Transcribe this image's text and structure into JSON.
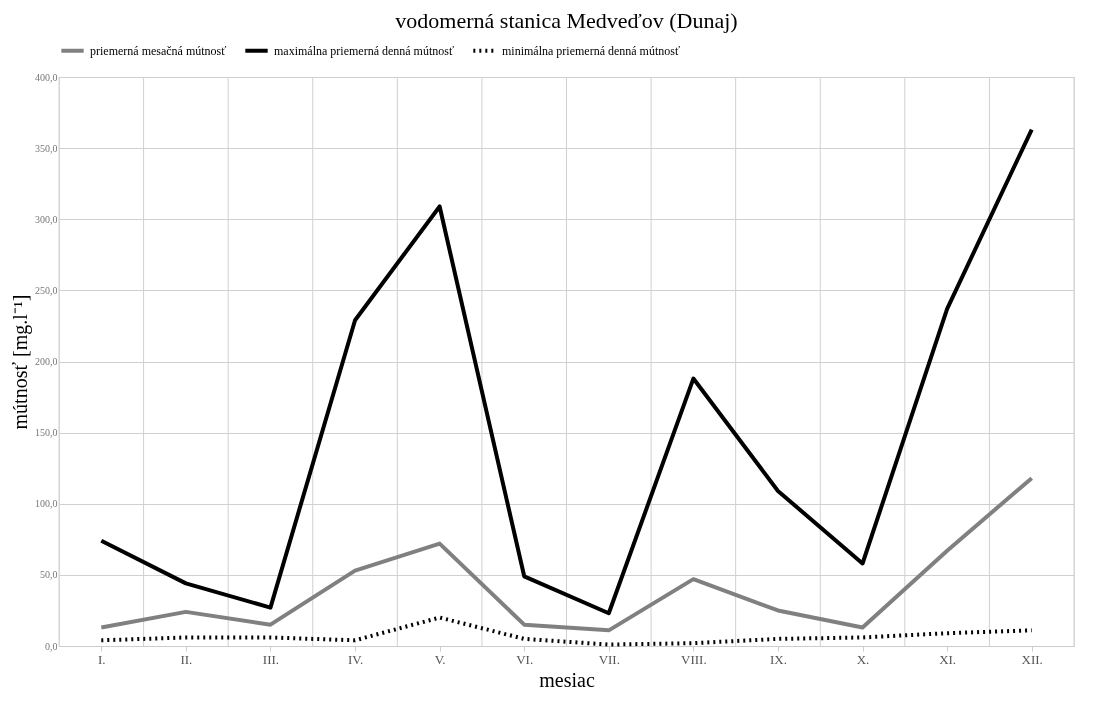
{
  "chart_data": {
    "type": "line",
    "title": "vodomerná stanica Medveďov (Dunaj)",
    "xlabel": "mesiac",
    "ylabel": "mútnosť [mg.l⁻¹]",
    "categories": [
      "I.",
      "II.",
      "III.",
      "IV.",
      "V.",
      "VI.",
      "VII.",
      "VIII.",
      "IX.",
      "X.",
      "XI.",
      "XII."
    ],
    "series": [
      {
        "name": "priemerná mesačná mútnosť",
        "color": "#808080",
        "line_style": "solid",
        "values": [
          13,
          24,
          15,
          53,
          72,
          15,
          11,
          47,
          25,
          13,
          67,
          118
        ]
      },
      {
        "name": "maximálna priemerná denná mútnosť",
        "color": "#000000",
        "line_style": "solid",
        "values": [
          74,
          44,
          27,
          229,
          309,
          49,
          23,
          188,
          109,
          58,
          237,
          363
        ]
      },
      {
        "name": "minimálna priemerná denná mútnosť",
        "color": "#000000",
        "line_style": "dotted",
        "values": [
          4,
          6,
          6,
          4,
          20,
          5,
          1,
          2,
          5,
          6,
          9,
          11
        ]
      }
    ],
    "ylim": [
      0,
      400
    ],
    "yticks": [
      {
        "value": 0,
        "label": "0,0"
      },
      {
        "value": 50,
        "label": "50,0"
      },
      {
        "value": 100,
        "label": "100,0"
      },
      {
        "value": 150,
        "label": "150,0"
      },
      {
        "value": 200,
        "label": "200,0"
      },
      {
        "value": 250,
        "label": "250,0"
      },
      {
        "value": 300,
        "label": "300,0"
      },
      {
        "value": 350,
        "label": "350,0"
      },
      {
        "value": 400,
        "label": "400,0"
      }
    ],
    "grid": true,
    "legend": "top",
    "marker": "none"
  }
}
